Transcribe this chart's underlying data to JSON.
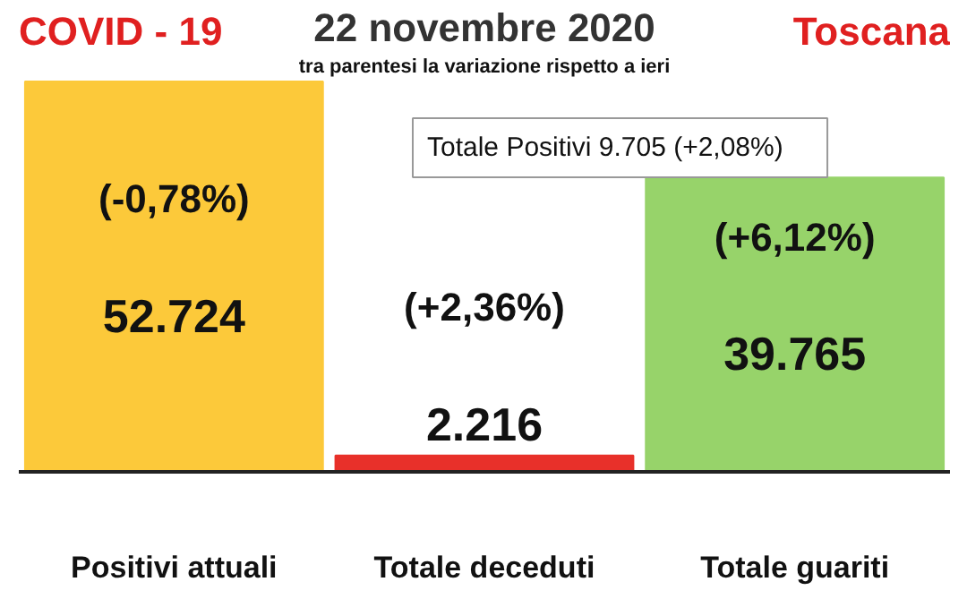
{
  "chart_data": {
    "type": "bar",
    "title": "22 novembre 2020",
    "subtitle": "tra parentesi la variazione rispetto a ieri",
    "annotations": [
      "COVID - 19",
      "Toscana",
      "(-0,78%)",
      "(+2,36%)",
      "(+6,12%)",
      "Totale Positivi     9.705 (+2,08%)"
    ],
    "categories": [
      "Positivi attuali",
      "Totale deceduti",
      "Totale guariti"
    ],
    "values": [
      52724,
      2216,
      39765
    ],
    "colors": [
      "#fcc93a",
      "#e8302a",
      "#97d36a"
    ],
    "value_labels": [
      "52.724",
      "2.216",
      "39.765"
    ],
    "grid": false
  }
}
